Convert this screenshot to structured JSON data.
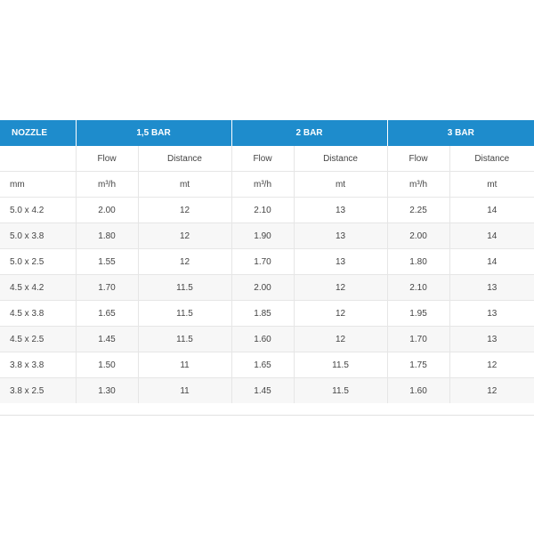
{
  "table": {
    "headers": [
      "NOZZLE",
      "1,5 BAR",
      "2 BAR",
      "3 BAR"
    ],
    "subheaders": [
      "",
      "Flow",
      "Distance",
      "Flow",
      "Distance",
      "Flow",
      "Distance"
    ],
    "units": [
      "mm",
      "m³/h",
      "mt",
      "m³/h",
      "mt",
      "m³/h",
      "mt"
    ],
    "rows": [
      [
        "5.0 x 4.2",
        "2.00",
        "12",
        "2.10",
        "13",
        "2.25",
        "14"
      ],
      [
        "5.0 x 3.8",
        "1.80",
        "12",
        "1.90",
        "13",
        "2.00",
        "14"
      ],
      [
        "5.0 x 2.5",
        "1.55",
        "12",
        "1.70",
        "13",
        "1.80",
        "14"
      ],
      [
        "4.5 x 4.2",
        "1.70",
        "11.5",
        "2.00",
        "12",
        "2.10",
        "13"
      ],
      [
        "4.5 x 3.8",
        "1.65",
        "11.5",
        "1.85",
        "12",
        "1.95",
        "13"
      ],
      [
        "4.5 x 2.5",
        "1.45",
        "11.5",
        "1.60",
        "12",
        "1.70",
        "13"
      ],
      [
        "3.8 x 3.8",
        "1.50",
        "11",
        "1.65",
        "11.5",
        "1.75",
        "12"
      ],
      [
        "3.8 x 2.5",
        "1.30",
        "11",
        "1.45",
        "11.5",
        "1.60",
        "12"
      ]
    ]
  },
  "colors": {
    "header_bg": "#1e8ccc",
    "header_text": "#ffffff",
    "body_text": "#444444"
  }
}
